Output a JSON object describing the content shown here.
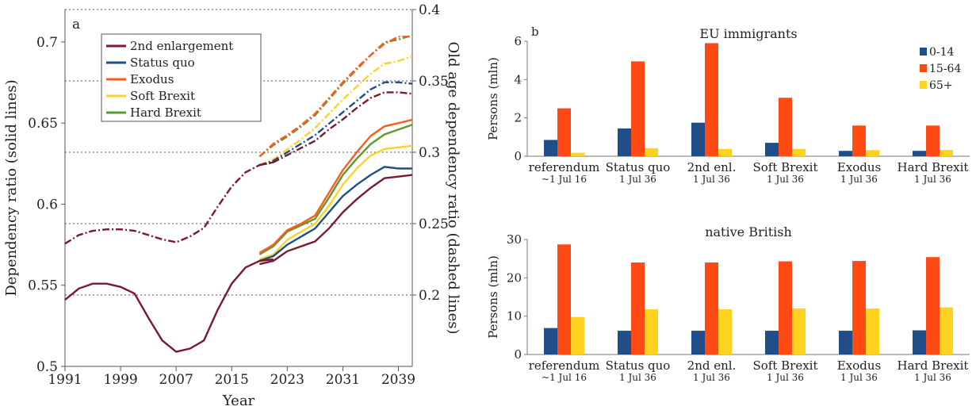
{
  "chart_data": [
    {
      "type": "line",
      "panel_label": "a",
      "xlabel": "Year",
      "ylabel_left": "Dependency ratio (solid lines)",
      "ylabel_right": "Old age dependency ratio (dashed lines)",
      "xlim": [
        1991,
        2041
      ],
      "ylim_left": [
        0.5,
        0.72
      ],
      "ylim_right": [
        0.15,
        0.4
      ],
      "x_ticks": [
        "1991",
        "1999",
        "2007",
        "2015",
        "2023",
        "2031",
        "2039"
      ],
      "y_ticks_left": [
        "0.5",
        "0.55",
        "0.6",
        "0.65",
        "0.7"
      ],
      "y_ticks_right": [
        "0.2",
        "0.25",
        "0.3",
        "0.35",
        "0.4"
      ],
      "legend_position": "top-left",
      "series": [
        {
          "name": "2nd enlargement",
          "color": "#7a1a2e"
        },
        {
          "name": "Status quo",
          "color": "#1f4e89"
        },
        {
          "name": "Exodus",
          "color": "#ff5a1f"
        },
        {
          "name": "Soft Brexit",
          "color": "#ffd12a"
        },
        {
          "name": "Hard Brexit",
          "color": "#5c9a2e"
        }
      ],
      "history": {
        "solid": {
          "x": [
            1991,
            1993,
            1995,
            1997,
            1999,
            2001,
            2003,
            2005,
            2007,
            2009,
            2011,
            2013,
            2015,
            2017,
            2019,
            2021
          ],
          "y": [
            0.541,
            0.548,
            0.551,
            0.551,
            0.549,
            0.545,
            0.53,
            0.516,
            0.509,
            0.511,
            0.516,
            0.535,
            0.551,
            0.561,
            0.565,
            0.566
          ]
        },
        "dashed": {
          "x": [
            1991,
            1993,
            1995,
            1997,
            1999,
            2001,
            2003,
            2005,
            2007,
            2009,
            2011,
            2013,
            2015,
            2017,
            2019,
            2021
          ],
          "y": [
            0.236,
            0.242,
            0.245,
            0.246,
            0.246,
            0.245,
            0.242,
            0.239,
            0.237,
            0.241,
            0.247,
            0.262,
            0.276,
            0.286,
            0.291,
            0.293
          ]
        }
      },
      "projections": {
        "x": [
          2019,
          2021,
          2023,
          2025,
          2027,
          2029,
          2031,
          2033,
          2035,
          2037,
          2039,
          2041
        ],
        "solid": {
          "2nd enlargement": [
            0.563,
            0.565,
            0.571,
            0.574,
            0.577,
            0.585,
            0.595,
            0.603,
            0.61,
            0.616,
            0.617,
            0.618
          ],
          "Status quo": [
            0.565,
            0.568,
            0.575,
            0.58,
            0.585,
            0.595,
            0.605,
            0.612,
            0.618,
            0.623,
            0.622,
            0.622
          ],
          "Exodus": [
            0.57,
            0.575,
            0.584,
            0.588,
            0.593,
            0.607,
            0.621,
            0.632,
            0.642,
            0.648,
            0.65,
            0.652
          ],
          "Soft Brexit": [
            0.566,
            0.569,
            0.578,
            0.583,
            0.588,
            0.599,
            0.612,
            0.622,
            0.63,
            0.634,
            0.635,
            0.636
          ],
          "Hard Brexit": [
            0.569,
            0.574,
            0.583,
            0.587,
            0.591,
            0.604,
            0.618,
            0.628,
            0.637,
            0.643,
            0.646,
            0.649
          ]
        },
        "dashed": {
          "2nd enlargement": [
            0.291,
            0.293,
            0.298,
            0.303,
            0.308,
            0.316,
            0.323,
            0.331,
            0.338,
            0.342,
            0.342,
            0.341
          ],
          "Status quo": [
            0.291,
            0.294,
            0.3,
            0.306,
            0.312,
            0.32,
            0.328,
            0.336,
            0.344,
            0.349,
            0.349,
            0.348
          ],
          "Exodus": [
            0.297,
            0.306,
            0.312,
            0.319,
            0.327,
            0.338,
            0.349,
            0.359,
            0.368,
            0.376,
            0.381,
            0.381
          ],
          "Soft Brexit": [
            0.291,
            0.295,
            0.302,
            0.309,
            0.317,
            0.327,
            0.337,
            0.346,
            0.355,
            0.362,
            0.364,
            0.367
          ],
          "Hard Brexit": [
            0.297,
            0.305,
            0.311,
            0.318,
            0.326,
            0.337,
            0.348,
            0.358,
            0.368,
            0.377,
            0.379,
            0.382
          ]
        }
      }
    },
    {
      "type": "bar",
      "panel_label": "b",
      "title": "EU immigrants",
      "ylabel": "Persons (mln)",
      "ylim": [
        0,
        6
      ],
      "y_ticks": [
        "0",
        "2",
        "4",
        "6"
      ],
      "categories": [
        "referendum",
        "Status quo",
        "2nd enl.",
        "Soft Brexit",
        "Exodus",
        "Hard Brexit"
      ],
      "sublabels": [
        "~1 Jul 16",
        "1 Jul 36",
        "1 Jul 36",
        "1 Jul 36",
        "1 Jul 36",
        "1 Jul 36"
      ],
      "legend_position": "top-right",
      "series": [
        {
          "name": "0-14",
          "color": "#1f4e89",
          "values": [
            0.85,
            1.45,
            1.75,
            0.7,
            0.28,
            0.28
          ]
        },
        {
          "name": "15-64",
          "color": "#ff4a14",
          "values": [
            2.5,
            4.95,
            5.9,
            3.05,
            1.6,
            1.6
          ]
        },
        {
          "name": "65+",
          "color": "#ffd21f",
          "values": [
            0.18,
            0.42,
            0.38,
            0.38,
            0.32,
            0.33
          ]
        }
      ]
    },
    {
      "type": "bar",
      "title": "native British",
      "ylabel": "Persons (mln)",
      "ylim": [
        0,
        30
      ],
      "y_ticks": [
        "0",
        "10",
        "20",
        "30"
      ],
      "categories": [
        "referendum",
        "Status quo",
        "2nd enl.",
        "Soft Brexit",
        "Exodus",
        "Hard Brexit"
      ],
      "sublabels": [
        "~1 Jul 16",
        "1 Jul 36",
        "1 Jul 36",
        "1 Jul 36",
        "1 Jul 36",
        "1 Jul 36"
      ],
      "series": [
        {
          "name": "0-14",
          "color": "#1f4e89",
          "values": [
            6.9,
            6.2,
            6.2,
            6.2,
            6.2,
            6.3
          ]
        },
        {
          "name": "15-64",
          "color": "#ff4a14",
          "values": [
            28.7,
            24.0,
            24.0,
            24.3,
            24.4,
            25.4
          ]
        },
        {
          "name": "65+",
          "color": "#ffd21f",
          "values": [
            9.8,
            11.8,
            11.8,
            12.0,
            12.0,
            12.3
          ]
        }
      ]
    }
  ]
}
